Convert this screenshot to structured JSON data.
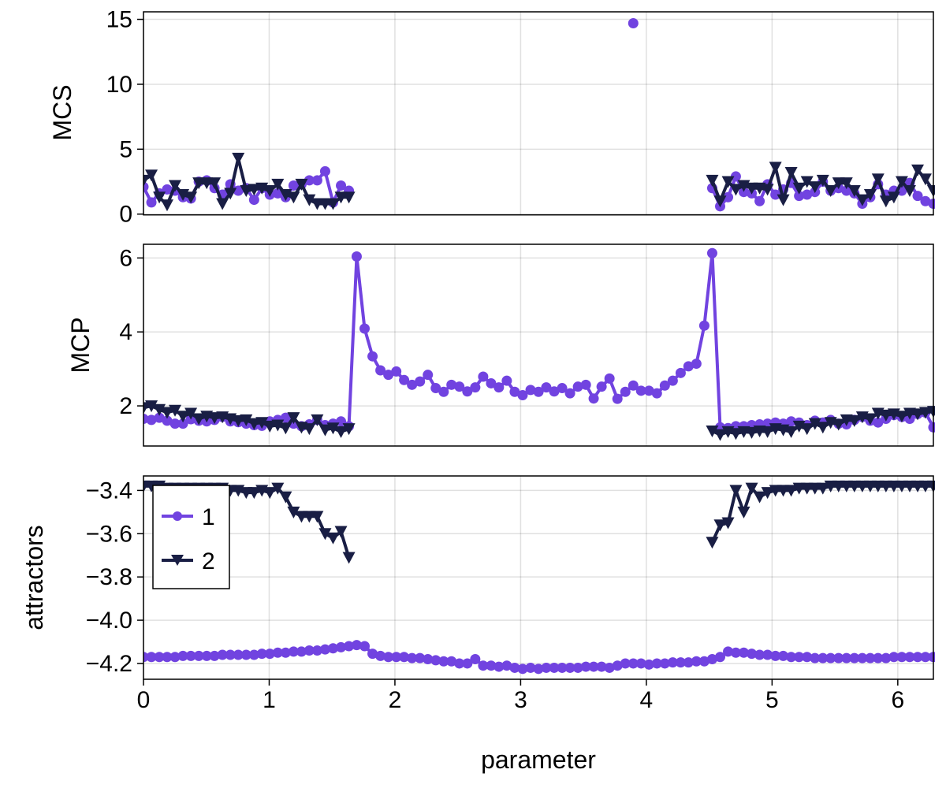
{
  "chart_data": [
    {
      "type": "line",
      "ylabel": "MCS",
      "xlabel": "",
      "xlim": [
        0,
        6.2832
      ],
      "ylim": [
        -0.06,
        15.58
      ],
      "yticks": [
        0,
        5,
        10,
        15
      ],
      "grid": true,
      "series_ref": "mcs"
    },
    {
      "type": "line",
      "ylabel": "MCP",
      "xlabel": "",
      "xlim": [
        0,
        6.2832
      ],
      "ylim": [
        0.915,
        6.37
      ],
      "yticks": [
        2,
        4,
        6
      ],
      "grid": true,
      "series_ref": "mcp"
    },
    {
      "type": "line",
      "ylabel": "attractors",
      "xlabel": "parameter",
      "xlim": [
        0,
        6.2832
      ],
      "ylim": [
        -4.273,
        -3.333
      ],
      "yticks": [
        -3.4,
        -3.6,
        -3.8,
        -4.0,
        -4.2
      ],
      "ytick_labels": [
        "−3.4",
        "−3.6",
        "−3.8",
        "−4.0",
        "−4.2"
      ],
      "xticks": [
        0,
        1,
        2,
        3,
        4,
        5,
        6
      ],
      "xtick_labels": [
        "0",
        "1",
        "2",
        "3",
        "4",
        "5",
        "6"
      ],
      "grid": true,
      "legend": {
        "placement": "top-left",
        "entries": [
          "1",
          "2"
        ]
      },
      "series_ref": "attractors"
    }
  ],
  "x": [
    0,
    0.063,
    0.126,
    0.188,
    0.251,
    0.314,
    0.377,
    0.44,
    0.503,
    0.565,
    0.628,
    0.691,
    0.754,
    0.817,
    0.88,
    0.942,
    1.005,
    1.068,
    1.131,
    1.194,
    1.257,
    1.319,
    1.382,
    1.445,
    1.508,
    1.571,
    1.634,
    1.696,
    1.759,
    1.822,
    1.885,
    1.948,
    2.011,
    2.073,
    2.136,
    2.199,
    2.262,
    2.325,
    2.388,
    2.45,
    2.513,
    2.576,
    2.639,
    2.702,
    2.765,
    2.827,
    2.89,
    2.953,
    3.016,
    3.079,
    3.142,
    3.204,
    3.267,
    3.33,
    3.393,
    3.456,
    3.519,
    3.581,
    3.644,
    3.707,
    3.77,
    3.833,
    3.896,
    3.958,
    4.021,
    4.084,
    4.147,
    4.21,
    4.273,
    4.335,
    4.398,
    4.461,
    4.524,
    4.587,
    4.65,
    4.712,
    4.775,
    4.838,
    4.901,
    4.964,
    5.027,
    5.089,
    5.152,
    5.215,
    5.278,
    5.341,
    5.404,
    5.466,
    5.529,
    5.592,
    5.655,
    5.718,
    5.781,
    5.843,
    5.906,
    5.969,
    6.032,
    6.095,
    6.158,
    6.22,
    6.283
  ],
  "series": {
    "mcs": [
      {
        "name": "1",
        "color": "#7143E0",
        "marker": "circle",
        "values": [
          2.1,
          0.9,
          1.6,
          1.9,
          1.8,
          1.3,
          1.2,
          2.5,
          2.6,
          2.0,
          1.5,
          2.3,
          1.8,
          2.0,
          1.1,
          2.0,
          1.5,
          1.6,
          1.3,
          2.2,
          2.3,
          2.6,
          2.6,
          3.3,
          0.9,
          2.2,
          1.8,
          null,
          null,
          null,
          null,
          null,
          null,
          null,
          null,
          null,
          null,
          null,
          null,
          null,
          null,
          null,
          null,
          null,
          null,
          null,
          null,
          null,
          null,
          null,
          null,
          null,
          null,
          null,
          null,
          null,
          null,
          null,
          null,
          null,
          null,
          null,
          14.7,
          null,
          null,
          null,
          null,
          null,
          null,
          null,
          null,
          null,
          2.0,
          0.6,
          1.3,
          2.9,
          1.7,
          1.6,
          1.0,
          2.3,
          1.5,
          1.9,
          2.4,
          1.4,
          1.5,
          1.7,
          2.5,
          1.8,
          2.0,
          1.8,
          1.6,
          0.8,
          1.3,
          2.3,
          1.5,
          1.8,
          1.8,
          2.4,
          1.4,
          1.0,
          0.8
        ]
      },
      {
        "name": "2",
        "color": "#191E44",
        "marker": "triangle-down",
        "values": [
          2.6,
          3.0,
          1.3,
          0.7,
          2.2,
          1.5,
          1.3,
          2.4,
          2.4,
          2.4,
          0.8,
          1.6,
          4.3,
          1.8,
          1.9,
          2.0,
          1.8,
          2.3,
          1.5,
          1.3,
          2.3,
          1.1,
          0.8,
          0.8,
          0.8,
          1.3,
          1.3,
          null,
          null,
          null,
          null,
          null,
          null,
          null,
          null,
          null,
          null,
          null,
          null,
          null,
          null,
          null,
          null,
          null,
          null,
          null,
          null,
          null,
          null,
          null,
          null,
          null,
          null,
          null,
          null,
          null,
          null,
          null,
          null,
          null,
          null,
          null,
          null,
          null,
          null,
          null,
          null,
          null,
          null,
          null,
          null,
          null,
          2.6,
          1.0,
          2.5,
          1.9,
          2.2,
          2.0,
          2.0,
          1.9,
          3.6,
          1.1,
          3.2,
          2.0,
          2.5,
          2.1,
          2.6,
          1.8,
          2.4,
          2.4,
          1.8,
          1.1,
          1.5,
          2.7,
          1.0,
          1.3,
          2.5,
          1.8,
          3.4,
          2.7,
          1.8
        ]
      }
    ],
    "mcp": [
      {
        "name": "1",
        "color": "#7143E0",
        "marker": "circle",
        "values": [
          1.65,
          1.62,
          1.68,
          1.6,
          1.52,
          1.52,
          1.64,
          1.6,
          1.58,
          1.62,
          1.7,
          1.58,
          1.56,
          1.52,
          1.48,
          1.46,
          1.58,
          1.62,
          1.68,
          1.52,
          1.45,
          1.5,
          1.62,
          1.48,
          1.52,
          1.58,
          1.45,
          6.04,
          4.09,
          3.34,
          2.96,
          2.84,
          2.93,
          2.7,
          2.57,
          2.66,
          2.84,
          2.48,
          2.38,
          2.57,
          2.52,
          2.39,
          2.5,
          2.79,
          2.61,
          2.5,
          2.68,
          2.38,
          2.29,
          2.43,
          2.38,
          2.5,
          2.39,
          2.48,
          2.34,
          2.52,
          2.57,
          2.2,
          2.52,
          2.74,
          2.19,
          2.38,
          2.55,
          2.41,
          2.41,
          2.34,
          2.55,
          2.68,
          2.89,
          3.07,
          3.14,
          4.17,
          6.13,
          1.42,
          1.4,
          1.45,
          1.45,
          1.48,
          1.5,
          1.52,
          1.55,
          1.52,
          1.58,
          1.55,
          1.48,
          1.6,
          1.55,
          1.62,
          1.52,
          1.5,
          1.62,
          1.7,
          1.6,
          1.55,
          1.65,
          1.75,
          1.7,
          1.65,
          1.78,
          1.82,
          1.42
        ]
      },
      {
        "name": "2",
        "color": "#191E44",
        "marker": "triangle-down",
        "values": [
          1.95,
          2.0,
          1.9,
          1.82,
          1.88,
          1.72,
          1.8,
          1.65,
          1.72,
          1.68,
          1.7,
          1.65,
          1.6,
          1.62,
          1.52,
          1.55,
          1.45,
          1.48,
          1.4,
          1.68,
          1.42,
          1.38,
          1.62,
          1.35,
          1.4,
          1.3,
          1.38,
          null,
          null,
          null,
          null,
          null,
          null,
          null,
          null,
          null,
          null,
          null,
          null,
          null,
          null,
          null,
          null,
          null,
          null,
          null,
          null,
          null,
          null,
          null,
          null,
          null,
          null,
          null,
          null,
          null,
          null,
          null,
          null,
          null,
          null,
          null,
          null,
          null,
          null,
          null,
          null,
          null,
          null,
          null,
          null,
          null,
          1.32,
          1.22,
          1.3,
          1.25,
          1.3,
          1.28,
          1.32,
          1.3,
          1.38,
          1.35,
          1.3,
          1.45,
          1.38,
          1.52,
          1.42,
          1.55,
          1.5,
          1.62,
          1.6,
          1.7,
          1.65,
          1.8,
          1.75,
          1.78,
          1.72,
          1.8,
          1.78,
          1.82,
          1.85
        ]
      }
    ],
    "attractors": [
      {
        "name": "1",
        "color": "#7143E0",
        "marker": "circle",
        "values": [
          -4.17,
          -4.17,
          -4.17,
          -4.17,
          -4.17,
          -4.165,
          -4.165,
          -4.165,
          -4.165,
          -4.165,
          -4.16,
          -4.16,
          -4.16,
          -4.16,
          -4.16,
          -4.155,
          -4.155,
          -4.15,
          -4.15,
          -4.145,
          -4.145,
          -4.14,
          -4.14,
          -4.135,
          -4.13,
          -4.125,
          -4.12,
          -4.115,
          -4.12,
          -4.155,
          -4.165,
          -4.17,
          -4.17,
          -4.17,
          -4.175,
          -4.175,
          -4.18,
          -4.185,
          -4.19,
          -4.19,
          -4.2,
          -4.2,
          -4.18,
          -4.21,
          -4.21,
          -4.215,
          -4.21,
          -4.22,
          -4.225,
          -4.22,
          -4.225,
          -4.22,
          -4.22,
          -4.22,
          -4.22,
          -4.22,
          -4.215,
          -4.215,
          -4.215,
          -4.22,
          -4.21,
          -4.2,
          -4.2,
          -4.2,
          -4.205,
          -4.2,
          -4.2,
          -4.195,
          -4.195,
          -4.195,
          -4.19,
          -4.19,
          -4.18,
          -4.17,
          -4.145,
          -4.15,
          -4.15,
          -4.155,
          -4.16,
          -4.16,
          -4.165,
          -4.165,
          -4.17,
          -4.17,
          -4.17,
          -4.175,
          -4.175,
          -4.175,
          -4.175,
          -4.175,
          -4.175,
          -4.175,
          -4.175,
          -4.175,
          -4.175,
          -4.17,
          -4.17,
          -4.17,
          -4.17,
          -4.17,
          -4.17
        ]
      },
      {
        "name": "2",
        "color": "#191E44",
        "marker": "triangle-down",
        "values": [
          -3.38,
          -3.38,
          -3.38,
          -3.39,
          -3.39,
          -3.39,
          -3.39,
          -3.39,
          -3.39,
          -3.39,
          -3.39,
          -3.4,
          -3.4,
          -3.41,
          -3.41,
          -3.4,
          -3.41,
          -3.39,
          -3.43,
          -3.5,
          -3.52,
          -3.52,
          -3.52,
          -3.6,
          -3.62,
          -3.59,
          -3.71,
          null,
          null,
          null,
          null,
          null,
          null,
          null,
          null,
          null,
          null,
          null,
          null,
          null,
          null,
          null,
          null,
          null,
          null,
          null,
          null,
          null,
          null,
          null,
          null,
          null,
          null,
          null,
          null,
          null,
          null,
          null,
          null,
          null,
          null,
          null,
          null,
          null,
          null,
          null,
          null,
          null,
          null,
          null,
          null,
          null,
          -3.64,
          -3.56,
          -3.55,
          -3.4,
          -3.5,
          -3.39,
          -3.43,
          -3.41,
          -3.4,
          -3.4,
          -3.4,
          -3.39,
          -3.39,
          -3.39,
          -3.39,
          -3.38,
          -3.38,
          -3.38,
          -3.38,
          -3.38,
          -3.38,
          -3.38,
          -3.38,
          -3.38,
          -3.38,
          -3.38,
          -3.38,
          -3.38,
          -3.38
        ]
      }
    ]
  }
}
